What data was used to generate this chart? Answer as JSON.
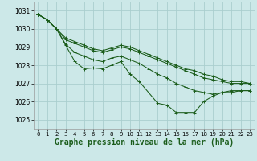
{
  "background_color": "#cce8e8",
  "grid_color": "#aacece",
  "line_color": "#1a5c1a",
  "xlabel": "Graphe pression niveau de la mer (hPa)",
  "xlabel_fontsize": 7,
  "xlim": [
    -0.5,
    23.5
  ],
  "ylim": [
    1024.5,
    1031.5
  ],
  "yticks": [
    1025,
    1026,
    1027,
    1028,
    1029,
    1030,
    1031
  ],
  "xticks": [
    0,
    1,
    2,
    3,
    4,
    5,
    6,
    7,
    8,
    9,
    10,
    11,
    12,
    13,
    14,
    15,
    16,
    17,
    18,
    19,
    20,
    21,
    22,
    23
  ],
  "series": [
    [
      1030.8,
      1030.5,
      1030.0,
      1029.1,
      1028.2,
      1027.8,
      1027.85,
      1027.8,
      1028.0,
      1028.2,
      1027.5,
      1027.1,
      1026.5,
      1025.9,
      1025.8,
      1025.4,
      1025.4,
      1025.4,
      1026.0,
      1026.3,
      1026.5,
      1026.6,
      1026.6,
      1026.6
    ],
    [
      1030.8,
      1030.5,
      1030.0,
      1029.15,
      1028.7,
      1028.5,
      1028.3,
      1028.2,
      1028.4,
      1028.5,
      1028.3,
      1028.1,
      1027.8,
      1027.5,
      1027.3,
      1027.0,
      1026.8,
      1026.6,
      1026.5,
      1026.4,
      1026.5,
      1026.5,
      1026.6,
      1026.6
    ],
    [
      1030.8,
      1030.5,
      1030.0,
      1029.4,
      1029.2,
      1029.0,
      1028.8,
      1028.7,
      1028.85,
      1029.0,
      1028.9,
      1028.7,
      1028.5,
      1028.3,
      1028.1,
      1027.9,
      1027.7,
      1027.5,
      1027.3,
      1027.2,
      1027.1,
      1027.0,
      1027.0,
      1027.0
    ],
    [
      1030.8,
      1030.5,
      1030.0,
      1029.5,
      1029.3,
      1029.1,
      1028.9,
      1028.8,
      1028.95,
      1029.1,
      1029.0,
      1028.8,
      1028.6,
      1028.4,
      1028.2,
      1028.0,
      1027.8,
      1027.7,
      1027.5,
      1027.4,
      1027.2,
      1027.1,
      1027.1,
      1027.0
    ]
  ]
}
